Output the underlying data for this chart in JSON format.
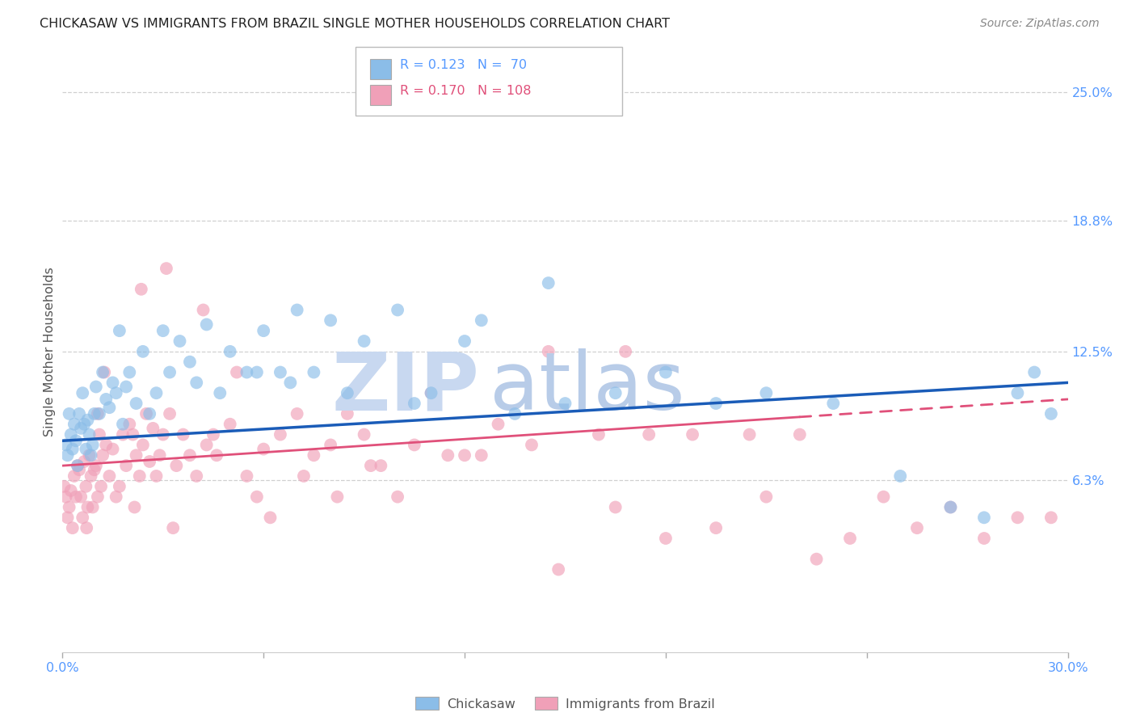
{
  "title": "CHICKASAW VS IMMIGRANTS FROM BRAZIL SINGLE MOTHER HOUSEHOLDS CORRELATION CHART",
  "source": "Source: ZipAtlas.com",
  "ylabel": "Single Mother Households",
  "ytick_values": [
    6.3,
    12.5,
    18.8,
    25.0
  ],
  "ytick_labels": [
    "6.3%",
    "12.5%",
    "18.8%",
    "25.0%"
  ],
  "xlim": [
    0.0,
    30.0
  ],
  "ylim": [
    -2.0,
    27.0
  ],
  "group1_label": "Chickasaw",
  "group2_label": "Immigrants from Brazil",
  "group1_color": "#8bbde8",
  "group2_color": "#f0a0b8",
  "group1_line_color": "#1a5cb8",
  "group2_line_color": "#e0507a",
  "group1_R": 0.123,
  "group1_N": 70,
  "group2_R": 0.17,
  "group2_N": 108,
  "background_color": "#ffffff",
  "grid_color": "#d0d0d0",
  "axis_label_color": "#5599ff",
  "watermark_zip_color": "#c8d8f0",
  "watermark_atlas_color": "#b8cce8",
  "group1_x": [
    0.1,
    0.15,
    0.2,
    0.25,
    0.3,
    0.35,
    0.4,
    0.45,
    0.5,
    0.55,
    0.6,
    0.65,
    0.7,
    0.75,
    0.8,
    0.85,
    0.9,
    0.95,
    1.0,
    1.1,
    1.2,
    1.3,
    1.4,
    1.5,
    1.6,
    1.7,
    1.8,
    1.9,
    2.0,
    2.2,
    2.4,
    2.6,
    2.8,
    3.0,
    3.2,
    3.5,
    3.8,
    4.0,
    4.3,
    4.7,
    5.0,
    5.5,
    6.0,
    6.5,
    7.0,
    7.5,
    8.0,
    9.0,
    10.0,
    11.0,
    12.5,
    13.5,
    15.0,
    16.5,
    18.0,
    19.5,
    21.0,
    23.0,
    25.0,
    26.5,
    27.5,
    28.5,
    29.0,
    29.5,
    14.5,
    5.8,
    6.8,
    8.5,
    10.5,
    12.0
  ],
  "group1_y": [
    8.0,
    7.5,
    9.5,
    8.5,
    7.8,
    9.0,
    8.2,
    7.0,
    9.5,
    8.8,
    10.5,
    9.0,
    7.8,
    9.2,
    8.5,
    7.5,
    8.0,
    9.5,
    10.8,
    9.5,
    11.5,
    10.2,
    9.8,
    11.0,
    10.5,
    13.5,
    9.0,
    10.8,
    11.5,
    10.0,
    12.5,
    9.5,
    10.5,
    13.5,
    11.5,
    13.0,
    12.0,
    11.0,
    13.8,
    10.5,
    12.5,
    11.5,
    13.5,
    11.5,
    14.5,
    11.5,
    14.0,
    13.0,
    14.5,
    10.5,
    14.0,
    9.5,
    10.0,
    10.5,
    11.5,
    10.0,
    10.5,
    10.0,
    6.5,
    5.0,
    4.5,
    10.5,
    11.5,
    9.5,
    15.8,
    11.5,
    11.0,
    10.5,
    10.0,
    13.0
  ],
  "group2_x": [
    0.05,
    0.1,
    0.15,
    0.2,
    0.25,
    0.3,
    0.35,
    0.4,
    0.45,
    0.5,
    0.55,
    0.6,
    0.65,
    0.7,
    0.75,
    0.8,
    0.85,
    0.9,
    0.95,
    1.0,
    1.05,
    1.1,
    1.15,
    1.2,
    1.3,
    1.4,
    1.5,
    1.6,
    1.7,
    1.8,
    1.9,
    2.0,
    2.1,
    2.2,
    2.3,
    2.4,
    2.5,
    2.6,
    2.7,
    2.8,
    2.9,
    3.0,
    3.2,
    3.4,
    3.6,
    3.8,
    4.0,
    4.3,
    4.6,
    5.0,
    5.5,
    6.0,
    6.5,
    7.0,
    7.5,
    8.0,
    8.5,
    9.0,
    9.5,
    10.0,
    11.0,
    11.5,
    12.5,
    13.0,
    14.0,
    5.2,
    4.2,
    3.1,
    2.35,
    1.05,
    0.72,
    1.25,
    2.15,
    3.3,
    4.5,
    5.8,
    6.2,
    7.2,
    8.2,
    9.2,
    10.5,
    12.0,
    14.5,
    16.0,
    17.5,
    14.8,
    16.5,
    18.0,
    19.5,
    21.0,
    22.5,
    23.5,
    24.5,
    25.5,
    26.5,
    27.5,
    28.5,
    29.5,
    30.5,
    16.8,
    18.8,
    20.5,
    22.0
  ],
  "group2_y": [
    6.0,
    5.5,
    4.5,
    5.0,
    5.8,
    4.0,
    6.5,
    5.5,
    7.0,
    6.8,
    5.5,
    4.5,
    7.2,
    6.0,
    5.0,
    7.5,
    6.5,
    5.0,
    6.8,
    7.0,
    5.5,
    8.5,
    6.0,
    7.5,
    8.0,
    6.5,
    7.8,
    5.5,
    6.0,
    8.5,
    7.0,
    9.0,
    8.5,
    7.5,
    6.5,
    8.0,
    9.5,
    7.2,
    8.8,
    6.5,
    7.5,
    8.5,
    9.5,
    7.0,
    8.5,
    7.5,
    6.5,
    8.0,
    7.5,
    9.0,
    6.5,
    7.8,
    8.5,
    9.5,
    7.5,
    8.0,
    9.5,
    8.5,
    7.0,
    5.5,
    10.5,
    7.5,
    7.5,
    9.0,
    8.0,
    11.5,
    14.5,
    16.5,
    15.5,
    9.5,
    4.0,
    11.5,
    5.0,
    4.0,
    8.5,
    5.5,
    4.5,
    6.5,
    5.5,
    7.0,
    8.0,
    7.5,
    12.5,
    8.5,
    8.5,
    2.0,
    5.0,
    3.5,
    4.0,
    5.5,
    2.5,
    3.5,
    5.5,
    4.0,
    5.0,
    3.5,
    4.5,
    4.5,
    5.0,
    12.5,
    8.5,
    8.5,
    8.5
  ],
  "reg1_x0": 0.0,
  "reg1_y0": 8.2,
  "reg1_x1": 30.0,
  "reg1_y1": 11.0,
  "reg2_x0": 0.0,
  "reg2_y0": 7.0,
  "reg2_x1": 30.0,
  "reg2_y1": 10.2,
  "reg2_dash_start": 22.0
}
